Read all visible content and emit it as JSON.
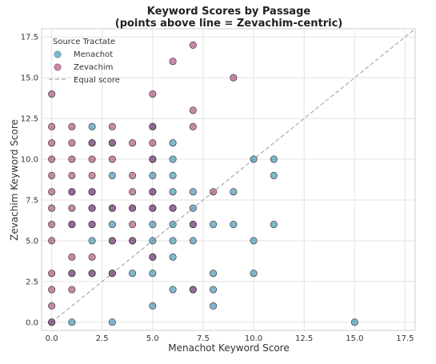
{
  "chart_data": {
    "type": "scatter",
    "title": "Keyword Scores by Passage",
    "subtitle": "(points above line = Zevachim-centric)",
    "xlabel": "Menachot Keyword Score",
    "ylabel": "Zevachim Keyword Score",
    "xlim": [
      -0.5,
      18
    ],
    "ylim": [
      -0.5,
      18
    ],
    "x_ticks": [
      0.0,
      2.5,
      5.0,
      7.5,
      10.0,
      12.5,
      15.0,
      17.5
    ],
    "y_ticks": [
      0.0,
      2.5,
      5.0,
      7.5,
      10.0,
      12.5,
      15.0,
      17.5
    ],
    "x_tick_labels": [
      "0.0",
      "2.5",
      "5.0",
      "7.5",
      "10.0",
      "12.5",
      "15.0",
      "17.5"
    ],
    "y_tick_labels": [
      "0.0",
      "2.5",
      "5.0",
      "7.5",
      "10.0",
      "12.5",
      "15.0",
      "17.5"
    ],
    "grid": true,
    "legend": {
      "title": "Source Tractate",
      "placement": "top-left",
      "entries": [
        "Menachot",
        "Zevachim",
        "Equal score"
      ]
    },
    "reference_line": {
      "name": "Equal score",
      "from": [
        0,
        0
      ],
      "to": [
        18,
        18
      ],
      "color": "#aaaaaa"
    },
    "series": [
      {
        "name": "Menachot",
        "color": "#2e86ab",
        "points": [
          [
            0,
            0
          ],
          [
            1,
            0
          ],
          [
            3,
            0
          ],
          [
            15,
            0
          ],
          [
            5,
            1
          ],
          [
            8,
            1
          ],
          [
            6,
            2
          ],
          [
            7,
            2
          ],
          [
            8,
            2
          ],
          [
            1,
            3
          ],
          [
            2,
            3
          ],
          [
            3,
            3
          ],
          [
            4,
            3
          ],
          [
            5,
            3
          ],
          [
            8,
            3
          ],
          [
            10,
            3
          ],
          [
            6,
            4
          ],
          [
            5,
            4
          ],
          [
            2,
            5
          ],
          [
            3,
            5
          ],
          [
            4,
            5
          ],
          [
            5,
            5
          ],
          [
            6,
            5
          ],
          [
            7,
            5
          ],
          [
            10,
            5
          ],
          [
            1,
            6
          ],
          [
            2,
            6
          ],
          [
            3,
            6
          ],
          [
            5,
            6
          ],
          [
            6,
            6
          ],
          [
            7,
            6
          ],
          [
            8,
            6
          ],
          [
            9,
            6
          ],
          [
            11,
            6
          ],
          [
            2,
            7
          ],
          [
            3,
            7
          ],
          [
            4,
            7
          ],
          [
            5,
            7
          ],
          [
            6,
            7
          ],
          [
            7,
            7
          ],
          [
            1,
            8
          ],
          [
            2,
            8
          ],
          [
            5,
            8
          ],
          [
            6,
            8
          ],
          [
            7,
            8
          ],
          [
            9,
            8
          ],
          [
            3,
            9
          ],
          [
            5,
            9
          ],
          [
            6,
            9
          ],
          [
            11,
            9
          ],
          [
            5,
            10
          ],
          [
            6,
            10
          ],
          [
            10,
            10
          ],
          [
            11,
            10
          ],
          [
            2,
            11
          ],
          [
            3,
            11
          ],
          [
            6,
            11
          ],
          [
            2,
            12
          ],
          [
            5,
            12
          ]
        ]
      },
      {
        "name": "Zevachim",
        "color": "#a23b72",
        "points": [
          [
            0,
            0
          ],
          [
            0,
            1
          ],
          [
            0,
            2
          ],
          [
            1,
            2
          ],
          [
            7,
            2
          ],
          [
            0,
            3
          ],
          [
            1,
            3
          ],
          [
            2,
            3
          ],
          [
            3,
            3
          ],
          [
            1,
            4
          ],
          [
            2,
            4
          ],
          [
            5,
            4
          ],
          [
            0,
            5
          ],
          [
            3,
            5
          ],
          [
            4,
            5
          ],
          [
            0,
            6
          ],
          [
            1,
            6
          ],
          [
            2,
            6
          ],
          [
            4,
            6
          ],
          [
            7,
            6
          ],
          [
            0,
            7
          ],
          [
            1,
            7
          ],
          [
            2,
            7
          ],
          [
            3,
            7
          ],
          [
            4,
            7
          ],
          [
            5,
            7
          ],
          [
            6,
            7
          ],
          [
            0,
            8
          ],
          [
            1,
            8
          ],
          [
            2,
            8
          ],
          [
            4,
            8
          ],
          [
            5,
            8
          ],
          [
            8,
            8
          ],
          [
            0,
            9
          ],
          [
            1,
            9
          ],
          [
            2,
            9
          ],
          [
            4,
            9
          ],
          [
            0,
            10
          ],
          [
            1,
            10
          ],
          [
            2,
            10
          ],
          [
            3,
            10
          ],
          [
            5,
            10
          ],
          [
            0,
            11
          ],
          [
            1,
            11
          ],
          [
            2,
            11
          ],
          [
            3,
            11
          ],
          [
            4,
            11
          ],
          [
            5,
            11
          ],
          [
            0,
            12
          ],
          [
            1,
            12
          ],
          [
            3,
            12
          ],
          [
            5,
            12
          ],
          [
            7,
            12
          ],
          [
            7,
            13
          ],
          [
            0,
            14
          ],
          [
            5,
            14
          ],
          [
            9,
            15
          ],
          [
            6,
            16
          ],
          [
            7,
            17
          ]
        ]
      }
    ]
  }
}
